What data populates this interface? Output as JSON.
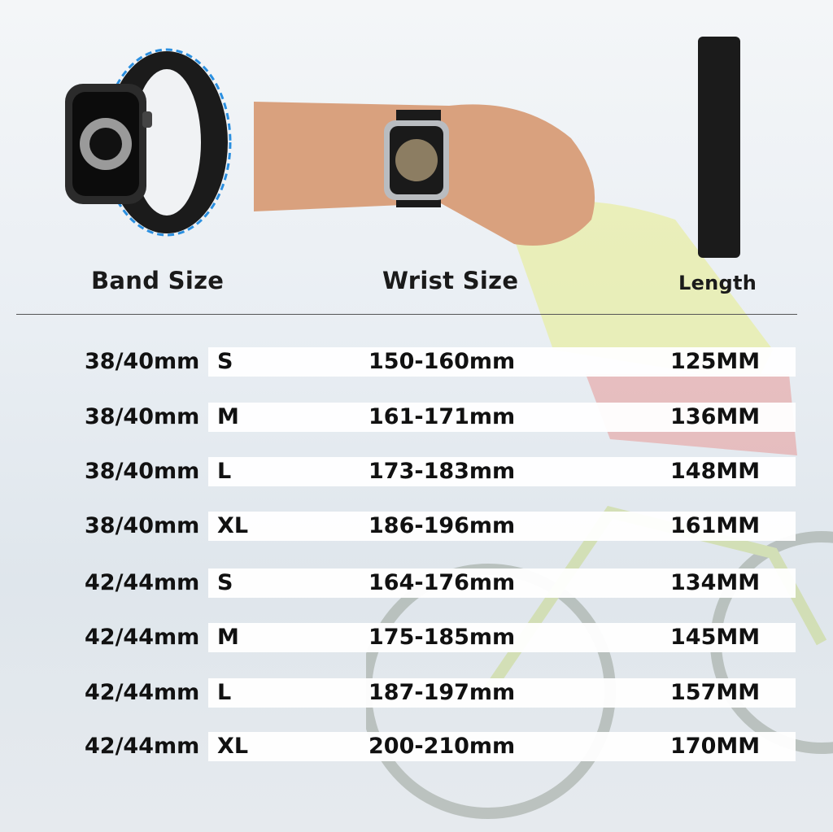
{
  "headers": {
    "band_size": "Band Size",
    "wrist_size": "Wrist Size",
    "length": "Length"
  },
  "rows": [
    {
      "band": "38/40mm",
      "size": "S",
      "wrist": "150-160mm",
      "length": "125MM"
    },
    {
      "band": "38/40mm",
      "size": "M",
      "wrist": "161-171mm",
      "length": "136MM"
    },
    {
      "band": "38/40mm",
      "size": "L",
      "wrist": "173-183mm",
      "length": "148MM"
    },
    {
      "band": "38/40mm",
      "size": "XL",
      "wrist": "186-196mm",
      "length": "161MM"
    },
    {
      "band": "42/44mm",
      "size": "S",
      "wrist": "164-176mm",
      "length": "134MM"
    },
    {
      "band": "42/44mm",
      "size": "M",
      "wrist": "175-185mm",
      "length": "145MM"
    },
    {
      "band": "42/44mm",
      "size": "L",
      "wrist": "187-197mm",
      "length": "157MM"
    },
    {
      "band": "42/44mm",
      "size": "XL",
      "wrist": "200-210mm",
      "length": "170MM"
    }
  ],
  "colors": {
    "accent_arrow": "#2a8fe0",
    "band": "#1b1b1b"
  }
}
